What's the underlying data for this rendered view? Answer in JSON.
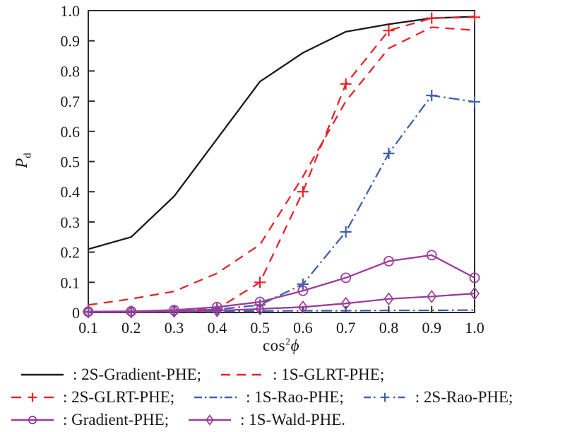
{
  "figure": {
    "background": "#ffffff",
    "frame_color": "#2b2b2b",
    "text_color": "#181818"
  },
  "chart_data": {
    "type": "line",
    "title": "",
    "xlabel": "cos2ϕ",
    "xlabel_parts": {
      "base": "cos",
      "sup": "2",
      "sym": "ϕ"
    },
    "ylabel": "Pd",
    "ylabel_parts": {
      "base": "P",
      "sub": "d"
    },
    "xlim": [
      0.1,
      1.0
    ],
    "ylim": [
      0,
      1.0
    ],
    "grid": false,
    "legend_position": "below",
    "x": [
      0.1,
      0.2,
      0.3,
      0.4,
      0.5,
      0.6,
      0.7,
      0.8,
      0.9,
      1.0
    ],
    "x_ticks": [
      0.1,
      0.2,
      0.3,
      0.4,
      0.5,
      0.6,
      0.7,
      0.8,
      0.9,
      1.0
    ],
    "x_tick_labels": [
      "0.1",
      "0.2",
      "0.3",
      "0.4",
      "0.5",
      "0.6",
      "0.7",
      "0.8",
      "0.9",
      "1.0"
    ],
    "y_ticks": [
      0,
      0.1,
      0.2,
      0.3,
      0.4,
      0.5,
      0.6,
      0.7,
      0.8,
      0.9,
      1.0
    ],
    "y_tick_labels": [
      "0",
      "0.1",
      "0.2",
      "0.3",
      "0.4",
      "0.5",
      "0.6",
      "0.7",
      "0.8",
      "0.9",
      "1.0"
    ],
    "series": [
      {
        "name": "2S-Gradient-PHE",
        "legend_label": ": 2S-Gradient-PHE;",
        "color": "#1a1a1a",
        "style": "solid",
        "marker": "none",
        "swatch": "solid-line",
        "values": [
          0.21,
          0.25,
          0.385,
          0.575,
          0.765,
          0.86,
          0.93,
          0.955,
          0.975,
          0.98
        ]
      },
      {
        "name": "1S-GLRT-PHE",
        "legend_label": ": 1S-GLRT-PHE;",
        "color": "#e8242c",
        "style": "dashed",
        "marker": "none",
        "swatch": "dashes",
        "values": [
          0.025,
          0.045,
          0.07,
          0.13,
          0.225,
          0.45,
          0.7,
          0.875,
          0.945,
          0.935
        ]
      },
      {
        "name": "2S-GLRT-PHE",
        "legend_label": ": 2S-GLRT-PHE;",
        "color": "#e8242c",
        "style": "dashed",
        "marker": "plus",
        "swatch": "dash-plus-dash",
        "values": [
          0.002,
          0.003,
          0.005,
          0.012,
          0.1,
          0.4,
          0.757,
          0.934,
          0.975,
          0.978
        ]
      },
      {
        "name": "1S-Rao-PHE",
        "legend_label": ": 1S-Rao-PHE;",
        "color": "#4161ac",
        "style": "dashdot",
        "marker": "none",
        "swatch": "dashdot",
        "values": [
          0.002,
          0.002,
          0.003,
          0.004,
          0.005,
          0.006,
          0.006,
          0.007,
          0.007,
          0.008
        ]
      },
      {
        "name": "2S-Rao-PHE",
        "legend_label": ": 2S-Rao-PHE;",
        "color": "#4161ac",
        "style": "dashdot",
        "marker": "plus",
        "swatch": "dashdot-plus",
        "values": [
          0.002,
          0.002,
          0.004,
          0.01,
          0.025,
          0.094,
          0.267,
          0.527,
          0.719,
          0.698
        ]
      },
      {
        "name": "Gradient-PHE",
        "legend_label": ": Gradient-PHE;",
        "color": "#9c3d9c",
        "style": "solid",
        "marker": "circle",
        "swatch": "line-circle",
        "values": [
          0.003,
          0.004,
          0.008,
          0.018,
          0.035,
          0.072,
          0.115,
          0.17,
          0.19,
          0.115
        ]
      },
      {
        "name": "1S-Wald-PHE",
        "legend_label": ": 1S-Wald-PHE.",
        "color": "#9c3d9c",
        "style": "solid",
        "marker": "diamond",
        "swatch": "line-diamond",
        "values": [
          0.002,
          0.002,
          0.004,
          0.006,
          0.012,
          0.018,
          0.03,
          0.045,
          0.053,
          0.063
        ]
      }
    ],
    "legend_rows": [
      [
        0,
        1
      ],
      [
        2,
        3,
        4
      ],
      [
        5,
        6
      ]
    ]
  }
}
